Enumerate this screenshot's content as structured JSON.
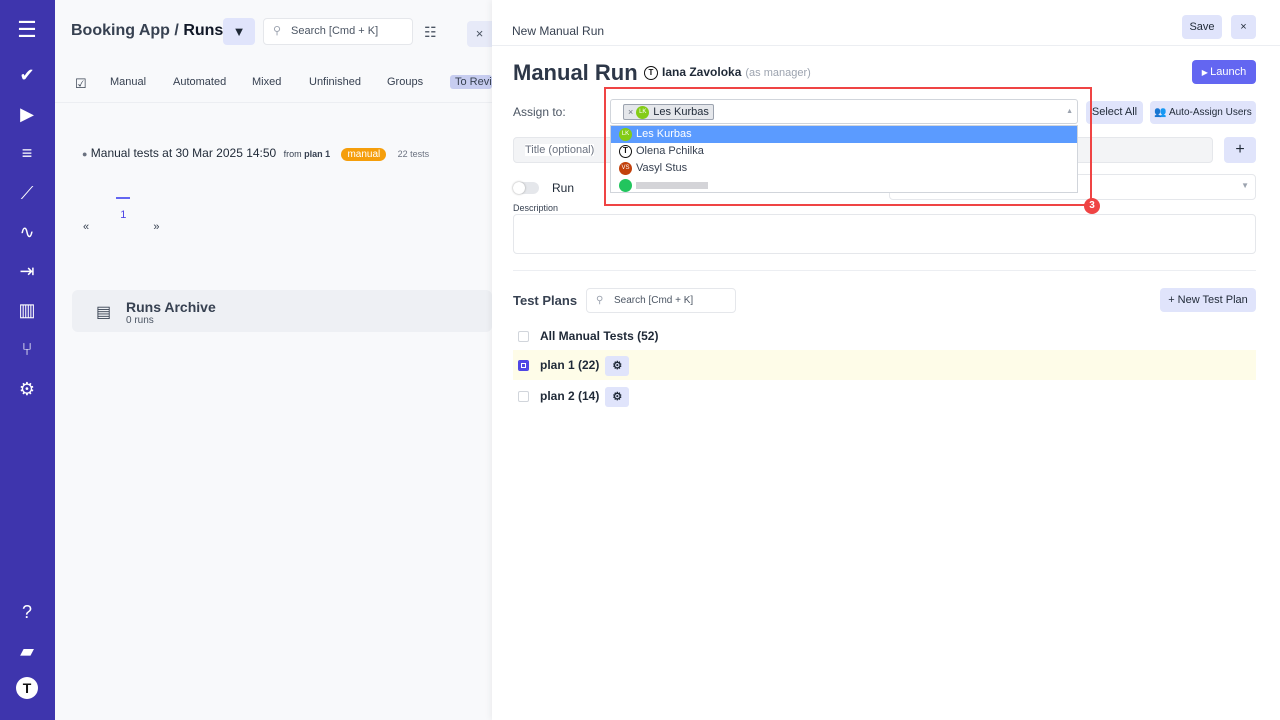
{
  "sidebar": {
    "items": [
      "menu-icon",
      "check-icon",
      "play-icon",
      "list-check-icon",
      "steps-icon",
      "pulse-icon",
      "import-icon",
      "analytics-icon",
      "branch-icon",
      "settings-icon",
      "help-icon",
      "folder-icon",
      "logo-icon"
    ],
    "color": "#3e35ad"
  },
  "left": {
    "breadcrumb": {
      "project": "Booking App",
      "separator": "/",
      "page": "Runs"
    },
    "search_placeholder": "Search [Cmd + K]",
    "tabs": [
      "Manual",
      "Automated",
      "Mixed",
      "Unfinished",
      "Groups",
      "To Revi"
    ],
    "run": {
      "title": "Manual tests at 30 Mar 2025 14:50",
      "from_label": "from",
      "plan": "plan 1",
      "badge": "manual",
      "tests": "22 tests"
    },
    "pager": {
      "prev": "«",
      "page": "1",
      "next": "»"
    },
    "archive": {
      "title": "Runs Archive",
      "count": "0 runs"
    }
  },
  "drawer": {
    "header": "New Manual Run",
    "save": "Save",
    "close": "×",
    "title": "Manual Run",
    "manager_name": "Iana Zavoloka",
    "manager_role": "(as manager)",
    "launch": "Launch",
    "assign_label": "Assign to:",
    "selected_chip": {
      "initials": "LK",
      "name": "Les Kurbas"
    },
    "options": [
      {
        "initials": "LK",
        "name": "Les Kurbas",
        "color": "#84cc16"
      },
      {
        "initials": "T",
        "name": "Olena Pchilka",
        "color": "#ffffff"
      },
      {
        "initials": "VS",
        "name": "Vasyl Stus",
        "color": "#c2410c"
      },
      {
        "initials": "",
        "name": "",
        "color": "#22c55e"
      }
    ],
    "select_all": "Select All",
    "auto_assign": "Auto-Assign Users",
    "title_placeholder": "Title (optional)",
    "add": "+",
    "run_toggle_label": "Run",
    "description_label": "Description",
    "annotation_number": "3",
    "test_plans_label": "Test Plans",
    "plans_search_placeholder": "Search [Cmd + K]",
    "new_plan": "+ New Test Plan",
    "plans": [
      {
        "label": "All Manual Tests (52)",
        "checked": false
      },
      {
        "label": "plan 1 (22)",
        "checked": true
      },
      {
        "label": "plan 2 (14)",
        "checked": false
      }
    ]
  }
}
